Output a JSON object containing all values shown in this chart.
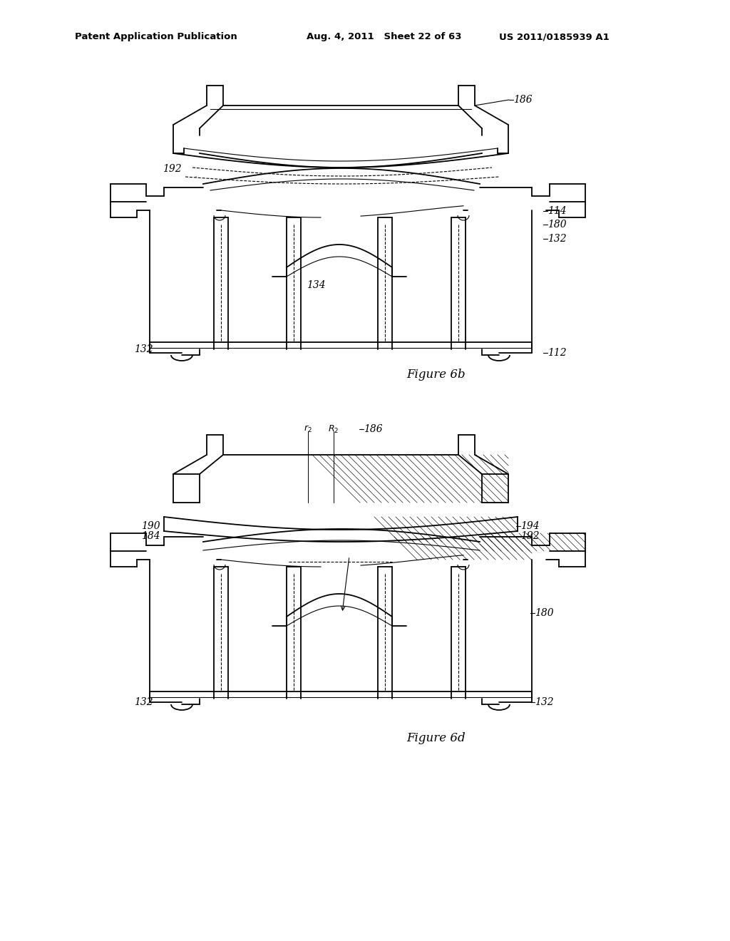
{
  "bg_color": "#ffffff",
  "line_color": "#000000",
  "header_left": "Patent Application Publication",
  "header_mid": "Aug. 4, 2011   Sheet 22 of 63",
  "header_right": "US 2011/0185939 A1",
  "fig6b_caption": "Figure 6b",
  "fig6d_caption": "Figure 6d"
}
